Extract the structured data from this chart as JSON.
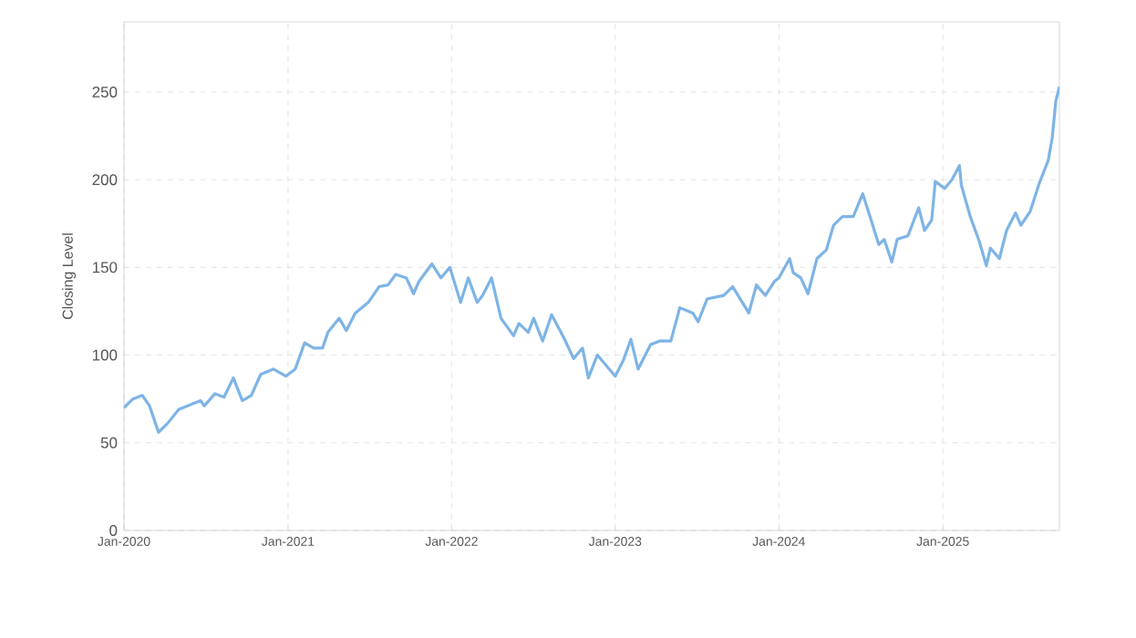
{
  "chart_data": {
    "type": "line",
    "ylabel": "Closing Level",
    "color": "#7eb4e6",
    "grid": true,
    "xlim": [
      "2020-01-01",
      "2025-09-18"
    ],
    "ylim": [
      0,
      290
    ],
    "xticks": [
      {
        "value": "2020-01-01",
        "label": "Jan-2020"
      },
      {
        "value": "2021-01-01",
        "label": "Jan-2021"
      },
      {
        "value": "2022-01-01",
        "label": "Jan-2022"
      },
      {
        "value": "2023-01-01",
        "label": "Jan-2023"
      },
      {
        "value": "2024-01-01",
        "label": "Jan-2024"
      },
      {
        "value": "2025-01-01",
        "label": "Jan-2025"
      }
    ],
    "yticks": [
      0,
      50,
      100,
      150,
      200,
      250
    ],
    "x": [
      "2020-01-01",
      "2020-01-21",
      "2020-02-11",
      "2020-02-27",
      "2020-03-18",
      "2020-04-07",
      "2020-05-02",
      "2020-06-20",
      "2020-06-28",
      "2020-07-22",
      "2020-08-11",
      "2020-09-01",
      "2020-09-21",
      "2020-10-11",
      "2020-11-01",
      "2020-11-29",
      "2020-12-27",
      "2021-01-17",
      "2021-02-07",
      "2021-02-27",
      "2021-03-19",
      "2021-03-31",
      "2021-04-25",
      "2021-05-11",
      "2021-05-31",
      "2021-06-29",
      "2021-07-23",
      "2021-08-12",
      "2021-08-29",
      "2021-09-22",
      "2021-10-08",
      "2021-10-20",
      "2021-11-18",
      "2021-12-08",
      "2021-12-28",
      "2022-01-21",
      "2022-02-07",
      "2022-02-27",
      "2022-03-11",
      "2022-03-31",
      "2022-04-21",
      "2022-05-19",
      "2022-05-31",
      "2022-06-21",
      "2022-07-03",
      "2022-07-23",
      "2022-08-12",
      "2022-09-10",
      "2022-09-30",
      "2022-10-20",
      "2022-11-02",
      "2022-11-22",
      "2023-01-01",
      "2023-01-19",
      "2023-02-05",
      "2023-02-21",
      "2023-03-21",
      "2023-04-10",
      "2023-05-05",
      "2023-05-25",
      "2023-06-23",
      "2023-07-05",
      "2023-07-25",
      "2023-08-31",
      "2023-09-20",
      "2023-10-02",
      "2023-10-26",
      "2023-11-12",
      "2023-12-02",
      "2023-12-22",
      "2024-01-01",
      "2024-01-25",
      "2024-02-02",
      "2024-02-19",
      "2024-03-06",
      "2024-03-26",
      "2024-04-16",
      "2024-05-02",
      "2024-05-22",
      "2024-06-15",
      "2024-07-06",
      "2024-07-26",
      "2024-08-11",
      "2024-08-23",
      "2024-09-09",
      "2024-09-21",
      "2024-10-15",
      "2024-11-08",
      "2024-11-21",
      "2024-12-07",
      "2024-12-15",
      "2025-01-05",
      "2025-01-21",
      "2025-02-07",
      "2025-02-11",
      "2025-03-03",
      "2025-03-23",
      "2025-04-08",
      "2025-04-17",
      "2025-05-07",
      "2025-05-23",
      "2025-06-12",
      "2025-06-24",
      "2025-07-15",
      "2025-08-04",
      "2025-08-24",
      "2025-09-02",
      "2025-09-10",
      "2025-09-18"
    ],
    "values": [
      70,
      75,
      77,
      71,
      56,
      61,
      69,
      74,
      71,
      78,
      76,
      87,
      74,
      77,
      89,
      92,
      88,
      92,
      107,
      104,
      104,
      113,
      121,
      114,
      124,
      130,
      139,
      140,
      146,
      144,
      135,
      142,
      152,
      144,
      150,
      130,
      144,
      130,
      134,
      144,
      121,
      111,
      118,
      113,
      121,
      108,
      123,
      109,
      98,
      104,
      87,
      100,
      88,
      97,
      109,
      92,
      106,
      108,
      108,
      127,
      124,
      119,
      132,
      134,
      139,
      134,
      124,
      140,
      134,
      142,
      144,
      155,
      147,
      144,
      135,
      155,
      160,
      174,
      179,
      179,
      192,
      176,
      163,
      166,
      153,
      166,
      168,
      184,
      171,
      177,
      199,
      195,
      200,
      208,
      197,
      179,
      165,
      151,
      161,
      155,
      171,
      181,
      174,
      182,
      198,
      211,
      224,
      245,
      253
    ]
  }
}
